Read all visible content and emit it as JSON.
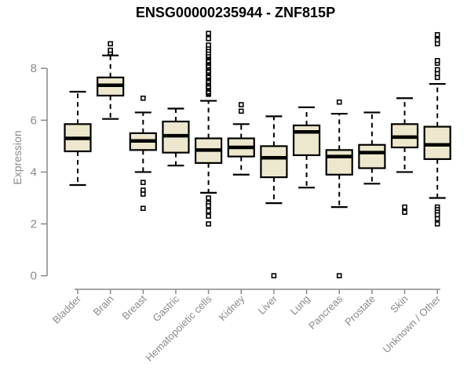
{
  "title": "ENSG00000235944 - ZNF815P",
  "colors": {
    "background": "#ffffff",
    "box_fill": "#EDE8CD",
    "box_stroke": "#000000",
    "axis": "#888888",
    "label": "#8a8a8a",
    "title_color": "#000000"
  },
  "chart_data": {
    "type": "boxplot",
    "title": "ENSG00000235944 - ZNF815P",
    "xlabel": "",
    "ylabel": "Expression",
    "ylim": [
      0,
      9.6
    ],
    "yticks": [
      "0",
      "2",
      "4",
      "6",
      "8"
    ],
    "grid": false,
    "legend": false,
    "categories": [
      "Bladder",
      "Brain",
      "Breast",
      "Gastric",
      "Hematopoietic cells",
      "Kidney",
      "Liver",
      "Lung",
      "Pancreas",
      "Prostate",
      "Skin",
      "Unknown / Other"
    ],
    "boxes": [
      {
        "category": "Bladder",
        "whisker_low": 3.5,
        "q1": 4.8,
        "median": 5.3,
        "q3": 5.85,
        "whisker_high": 7.1,
        "outliers_above": [],
        "outliers_below": []
      },
      {
        "category": "Brain",
        "whisker_low": 6.05,
        "q1": 6.95,
        "median": 7.35,
        "q3": 7.65,
        "whisker_high": 8.5,
        "outliers_above": [
          8.6,
          8.7,
          8.95
        ],
        "outliers_below": []
      },
      {
        "category": "Breast",
        "whisker_low": 4.0,
        "q1": 4.85,
        "median": 5.2,
        "q3": 5.5,
        "whisker_high": 6.3,
        "outliers_above": [
          6.85
        ],
        "outliers_below": [
          3.6,
          3.3,
          3.15,
          2.6
        ]
      },
      {
        "category": "Gastric",
        "whisker_low": 4.25,
        "q1": 4.75,
        "median": 5.4,
        "q3": 5.95,
        "whisker_high": 6.45,
        "outliers_above": [],
        "outliers_below": []
      },
      {
        "category": "Hematopoietic cells",
        "whisker_low": 3.2,
        "q1": 4.35,
        "median": 4.85,
        "q3": 5.3,
        "whisker_high": 6.75,
        "outliers_above": [
          7.0,
          7.05,
          7.1,
          7.2,
          7.25,
          7.3,
          7.4,
          7.45,
          7.5,
          7.6,
          7.65,
          7.7,
          7.8,
          7.85,
          7.9,
          8.0,
          8.05,
          8.1,
          8.2,
          8.25,
          8.3,
          8.4,
          8.45,
          8.5,
          8.6,
          8.7,
          8.8,
          8.9,
          9.15,
          9.35
        ],
        "outliers_below": [
          3.0,
          2.8,
          2.7,
          2.5,
          2.3,
          2.0
        ]
      },
      {
        "category": "Kidney",
        "whisker_low": 3.9,
        "q1": 4.6,
        "median": 4.95,
        "q3": 5.3,
        "whisker_high": 5.85,
        "outliers_above": [
          6.6,
          6.35
        ],
        "outliers_below": []
      },
      {
        "category": "Liver",
        "whisker_low": 2.8,
        "q1": 3.8,
        "median": 4.55,
        "q3": 5.0,
        "whisker_high": 6.15,
        "outliers_above": [],
        "outliers_below": [
          0.0
        ]
      },
      {
        "category": "Lung",
        "whisker_low": 3.4,
        "q1": 4.65,
        "median": 5.55,
        "q3": 5.8,
        "whisker_high": 6.5,
        "outliers_above": [],
        "outliers_below": []
      },
      {
        "category": "Pancreas",
        "whisker_low": 2.65,
        "q1": 3.9,
        "median": 4.6,
        "q3": 4.85,
        "whisker_high": 6.25,
        "outliers_above": [
          6.7
        ],
        "outliers_below": [
          0.0
        ]
      },
      {
        "category": "Prostate",
        "whisker_low": 3.55,
        "q1": 4.15,
        "median": 4.75,
        "q3": 5.05,
        "whisker_high": 6.3,
        "outliers_above": [],
        "outliers_below": []
      },
      {
        "category": "Skin",
        "whisker_low": 4.0,
        "q1": 4.95,
        "median": 5.35,
        "q3": 5.85,
        "whisker_high": 6.85,
        "outliers_above": [],
        "outliers_below": [
          2.65,
          2.45
        ]
      },
      {
        "category": "Unknown / Other",
        "whisker_low": 3.0,
        "q1": 4.5,
        "median": 5.05,
        "q3": 5.75,
        "whisker_high": 7.4,
        "outliers_above": [
          7.65,
          7.8,
          7.95,
          8.2,
          8.3,
          8.95,
          9.1,
          9.3
        ],
        "outliers_below": [
          2.65,
          2.55,
          2.45,
          2.35,
          2.2,
          2.0
        ]
      }
    ]
  }
}
